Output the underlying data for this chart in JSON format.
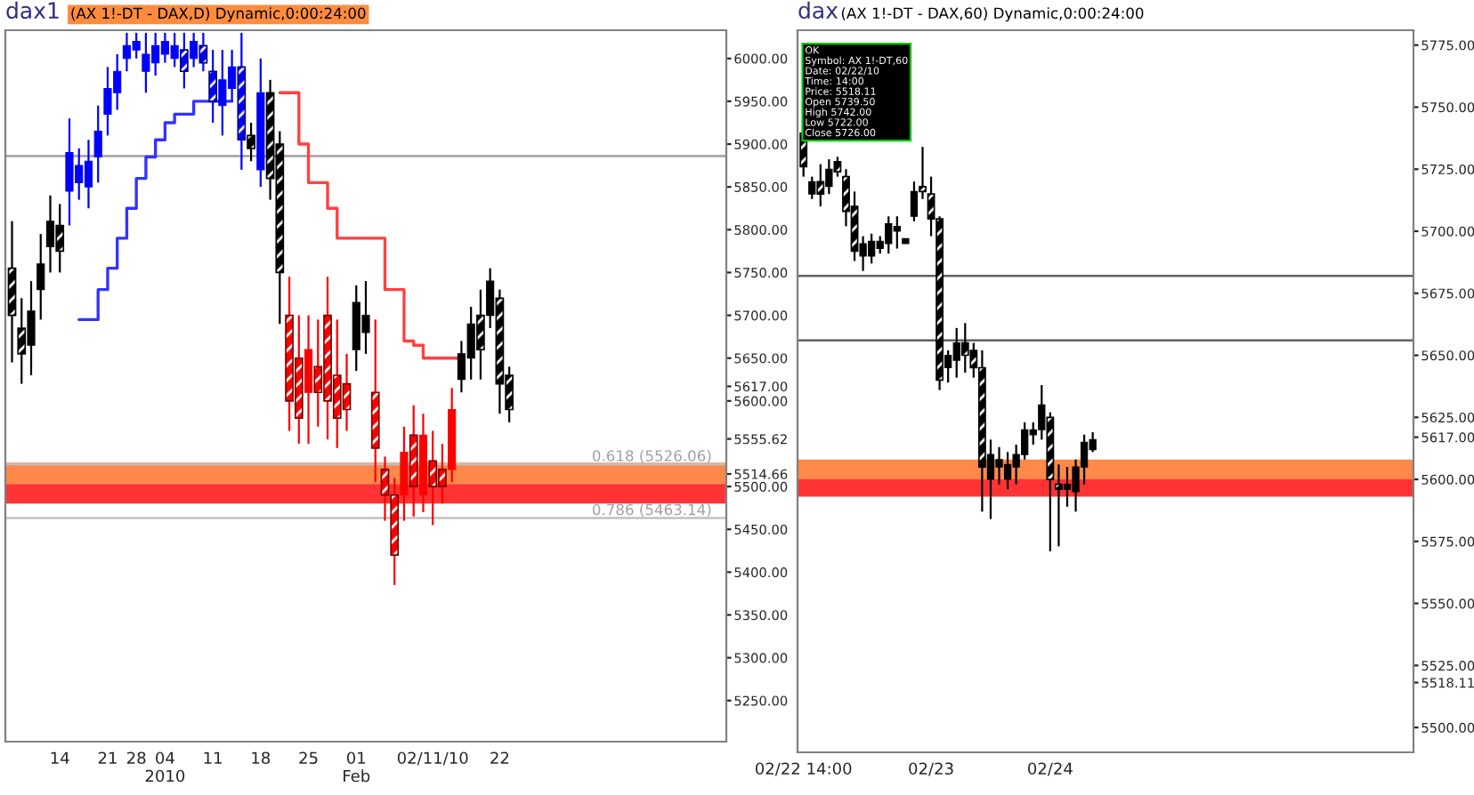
{
  "chart_data": [
    {
      "type": "candlestick",
      "title": "dax1",
      "subtitle": "(AX 1!-DT - DAX,D) Dynamic,0:00:24:00",
      "categories": [
        null,
        null,
        null,
        null,
        null,
        "14",
        null,
        null,
        null,
        null,
        "21",
        null,
        null,
        "28",
        null,
        null,
        "04\n2010",
        null,
        null,
        null,
        null,
        "11",
        null,
        null,
        null,
        null,
        "18",
        null,
        null,
        null,
        null,
        "25",
        null,
        null,
        null,
        null,
        "01\nFeb",
        null,
        null,
        null,
        null,
        null,
        null,
        null,
        "02/11/10",
        null,
        null,
        null,
        null,
        null,
        null,
        "22",
        null,
        null,
        null,
        null,
        null,
        null,
        null,
        null,
        null,
        null,
        null,
        null,
        null,
        null,
        null,
        null,
        null,
        null,
        null,
        null,
        null,
        null,
        null
      ],
      "ohlc": [
        [
          5755,
          5810,
          5645,
          5700
        ],
        [
          5685,
          5720,
          5620,
          5655
        ],
        [
          5665,
          5740,
          5630,
          5705
        ],
        [
          5730,
          5795,
          5695,
          5760
        ],
        [
          5780,
          5840,
          5750,
          5810
        ],
        [
          5805,
          5830,
          5750,
          5775
        ],
        [
          5845,
          5930,
          5805,
          5890
        ],
        [
          5855,
          5895,
          5835,
          5875
        ],
        [
          5850,
          5905,
          5825,
          5880
        ],
        [
          5885,
          5945,
          5855,
          5915
        ],
        [
          5935,
          5990,
          5910,
          5965
        ],
        [
          5960,
          6005,
          5940,
          5985
        ],
        [
          6000,
          6030,
          5985,
          6015
        ],
        [
          6010,
          6030,
          6000,
          6020
        ],
        [
          5985,
          6030,
          5960,
          6005
        ],
        [
          5995,
          6030,
          5980,
          6015
        ],
        [
          6005,
          6030,
          5995,
          6020
        ],
        [
          6000,
          6030,
          5990,
          6015
        ],
        [
          6010,
          6030,
          5965,
          5985
        ],
        [
          6000,
          6030,
          5990,
          6020
        ],
        [
          6015,
          6030,
          5985,
          5995
        ],
        [
          5985,
          6010,
          5925,
          5950
        ],
        [
          5945,
          6010,
          5910,
          5975
        ],
        [
          5965,
          6010,
          5950,
          5990
        ],
        [
          5990,
          6030,
          5870,
          5905
        ],
        [
          5910,
          5925,
          5880,
          5895
        ],
        [
          5870,
          6000,
          5850,
          5960
        ],
        [
          5960,
          5975,
          5835,
          5860
        ],
        [
          5900,
          5915,
          5690,
          5750
        ],
        [
          5700,
          5745,
          5565,
          5600
        ],
        [
          5650,
          5700,
          5550,
          5580
        ],
        [
          5610,
          5700,
          5550,
          5660
        ],
        [
          5640,
          5695,
          5570,
          5610
        ],
        [
          5700,
          5745,
          5555,
          5600
        ],
        [
          5630,
          5695,
          5545,
          5580
        ],
        [
          5620,
          5655,
          5565,
          5590
        ],
        [
          5660,
          5735,
          5635,
          5715
        ],
        [
          5680,
          5740,
          5655,
          5700
        ],
        [
          5610,
          5695,
          5505,
          5545
        ],
        [
          5520,
          5535,
          5460,
          5490
        ],
        [
          5490,
          5510,
          5385,
          5420
        ],
        [
          5490,
          5570,
          5460,
          5540
        ],
        [
          5560,
          5595,
          5465,
          5500
        ],
        [
          5490,
          5585,
          5470,
          5560
        ],
        [
          5530,
          5565,
          5455,
          5500
        ],
        [
          5520,
          5550,
          5480,
          5500
        ],
        [
          5520,
          5615,
          5505,
          5590
        ],
        [
          5625,
          5670,
          5610,
          5655
        ],
        [
          5650,
          5710,
          5625,
          5690
        ],
        [
          5700,
          5730,
          5625,
          5660
        ],
        [
          5700,
          5755,
          5685,
          5740
        ],
        [
          5720,
          5730,
          5585,
          5620
        ],
        [
          5630,
          5640,
          5575,
          5590
        ],
        null,
        null,
        null,
        null,
        null,
        null,
        null,
        null,
        null,
        null,
        null,
        null,
        null,
        null,
        null,
        null,
        null,
        null,
        null,
        null,
        null,
        null
      ],
      "colors": [
        "#000000",
        "#000000",
        "#000000",
        "#000000",
        "#000000",
        "#000000",
        "#0000ff",
        "#0000ff",
        "#0000ff",
        "#0000ff",
        "#0000ff",
        "#0000ff",
        "#0000ff",
        "#0000ff",
        "#0000ff",
        "#0000ff",
        "#0000ff",
        "#0000ff",
        "#0000ff",
        "#0000ff",
        "#0000ff",
        "#0000ff",
        "#0000ff",
        "#0000ff",
        "#0000ff",
        "#000000",
        "#0000ff",
        "#000000",
        "#000000",
        "#ff0000",
        "#ff0000",
        "#ff0000",
        "#ff0000",
        "#ff0000",
        "#ff0000",
        "#ff0000",
        "#000000",
        "#000000",
        "#ff0000",
        "#ff0000",
        "#ff0000",
        "#ff0000",
        "#ff0000",
        "#ff0000",
        "#ff0000",
        "#ff0000",
        "#ff0000",
        "#000000",
        "#000000",
        "#000000",
        "#000000",
        "#000000",
        "#000000",
        null,
        null,
        null,
        null,
        null,
        null,
        null,
        null,
        null,
        null,
        null,
        null,
        null,
        null,
        null,
        null,
        null,
        null,
        null,
        null,
        null,
        null
      ],
      "series": [
        {
          "type": "step",
          "color": "#3333ff",
          "values": [
            null,
            null,
            null,
            null,
            null,
            null,
            null,
            5695,
            5695,
            5730,
            5755,
            5790,
            5825,
            5860,
            5885,
            5905,
            5925,
            5935,
            5935,
            5950,
            5950,
            5950,
            5950,
            5950,
            null,
            null,
            null,
            null,
            null,
            null,
            null,
            null,
            null,
            null,
            null,
            null,
            null,
            null,
            null,
            null,
            null,
            null,
            null,
            null,
            null,
            null,
            null,
            null,
            null,
            null,
            null,
            null,
            null,
            null,
            null,
            null,
            null,
            null,
            null,
            null,
            null,
            null,
            null,
            null,
            null,
            null,
            null,
            null,
            null,
            null,
            null,
            null,
            null,
            null,
            null
          ]
        },
        {
          "type": "step",
          "color": "#ff4040",
          "values": [
            null,
            null,
            null,
            null,
            null,
            null,
            null,
            null,
            null,
            null,
            null,
            null,
            null,
            null,
            null,
            null,
            null,
            null,
            null,
            null,
            null,
            null,
            null,
            null,
            null,
            null,
            null,
            null,
            5960,
            5960,
            5900,
            5855,
            5855,
            5825,
            5790,
            5790,
            5790,
            5790,
            5790,
            5730,
            5730,
            5670,
            5665,
            5650,
            5650,
            5650,
            5650,
            5650,
            null,
            null,
            null,
            null,
            null,
            null,
            null,
            null,
            null,
            null,
            null,
            null,
            null,
            null,
            null,
            null,
            null,
            null,
            null,
            null,
            null,
            null,
            null,
            null,
            null,
            null,
            null
          ]
        }
      ],
      "ylim": [
        5202,
        6033
      ],
      "yticks": [
        {
          "value": 5250,
          "label": "5250.00"
        },
        {
          "value": 5300,
          "label": "5300.00"
        },
        {
          "value": 5350,
          "label": "5350.00"
        },
        {
          "value": 5400,
          "label": "5400.00"
        },
        {
          "value": 5450,
          "label": "5450.00"
        },
        {
          "value": 5500,
          "label": "5500.00"
        },
        {
          "value": 5514.66,
          "label": "5514.66"
        },
        {
          "value": 5555.62,
          "label": "5555.62"
        },
        {
          "value": 5600,
          "label": "5600.00"
        },
        {
          "value": 5617,
          "label": "5617.00"
        },
        {
          "value": 5650,
          "label": "5650.00"
        },
        {
          "value": 5700,
          "label": "5700.00"
        },
        {
          "value": 5750,
          "label": "5750.00"
        },
        {
          "value": 5800,
          "label": "5800.00"
        },
        {
          "value": 5850,
          "label": "5850.00"
        },
        {
          "value": 5900,
          "label": "5900.00"
        },
        {
          "value": 5950,
          "label": "5950.00"
        },
        {
          "value": 6000,
          "label": "6000.00"
        }
      ],
      "ref_lines": [
        {
          "axis": "y",
          "value": 5886,
          "color": "#a0a0a0"
        },
        {
          "axis": "y",
          "value": 5526.06,
          "label": "0.618 (5526.06)",
          "color": "#c0c0c0"
        },
        {
          "axis": "y",
          "value": 5463.14,
          "label": "0.786 (5463.14)",
          "color": "#c0c0c0"
        }
      ],
      "bands": [
        {
          "axis": "y",
          "from": 5503,
          "to": 5528,
          "color": "#ff6a1e"
        },
        {
          "axis": "y",
          "from": 5480,
          "to": 5503,
          "color": "#ff0000"
        }
      ]
    },
    {
      "type": "candlestick",
      "title": "dax",
      "subtitle": "(AX 1!-DT - DAX,60) Dynamic,0:00:24:00",
      "categories": [
        "02/22 14:00",
        null,
        null,
        null,
        null,
        null,
        null,
        null,
        null,
        null,
        null,
        null,
        null,
        null,
        null,
        "02/23",
        null,
        null,
        null,
        null,
        null,
        null,
        null,
        null,
        null,
        null,
        null,
        null,
        null,
        "02/24",
        null,
        null,
        null,
        null,
        null,
        null,
        null,
        null,
        null,
        null,
        null,
        null,
        null,
        null,
        null,
        null,
        null,
        null,
        null,
        null,
        null,
        null,
        null,
        null,
        null,
        null,
        null,
        null,
        null,
        null,
        null,
        null,
        null,
        null,
        null,
        null,
        null,
        null,
        null,
        null,
        null,
        null
      ],
      "ohlc": [
        [
          5739.5,
          5742,
          5722,
          5726
        ],
        [
          5715,
          5722,
          5713,
          5720
        ],
        [
          5720,
          5727,
          5710,
          5715
        ],
        [
          5718,
          5729,
          5715,
          5725
        ],
        [
          5728,
          5730,
          5722,
          5724
        ],
        [
          5722,
          5725,
          5702,
          5708
        ],
        [
          5710,
          5716,
          5688,
          5692
        ],
        [
          5690,
          5698,
          5684,
          5695
        ],
        [
          5690,
          5699,
          5687,
          5696
        ],
        [
          5693,
          5698,
          5691,
          5696
        ],
        [
          5695,
          5706,
          5691,
          5703
        ],
        [
          5700,
          5706,
          5693,
          5702
        ],
        [
          5695,
          5697,
          5695,
          5697
        ],
        [
          5706,
          5720,
          5704,
          5716
        ],
        [
          5718,
          5734,
          5713,
          5716
        ],
        [
          5715,
          5722,
          5698,
          5705
        ],
        [
          5705,
          5706,
          5636,
          5640
        ],
        [
          5645,
          5652,
          5639,
          5650
        ],
        [
          5648,
          5661,
          5641,
          5655
        ],
        [
          5655,
          5663,
          5643,
          5650
        ],
        [
          5652,
          5655,
          5641,
          5645
        ],
        [
          5645,
          5652,
          5587,
          5605
        ],
        [
          5600,
          5616,
          5584,
          5610
        ],
        [
          5605,
          5613,
          5598,
          5608
        ],
        [
          5600,
          5611,
          5596,
          5606
        ],
        [
          5605,
          5614,
          5598,
          5610
        ],
        [
          5610,
          5623,
          5608,
          5620
        ],
        [
          5618,
          5623,
          5614,
          5620
        ],
        [
          5620,
          5638,
          5616,
          5630
        ],
        [
          5625,
          5627,
          5571,
          5600
        ],
        [
          5598,
          5606,
          5573,
          5596
        ],
        [
          5596,
          5605,
          5589,
          5598
        ],
        [
          5595,
          5608,
          5587,
          5605
        ],
        [
          5605,
          5618,
          5598,
          5615
        ],
        [
          5612,
          5619,
          5611,
          5616
        ],
        null,
        null,
        null,
        null,
        null,
        null,
        null,
        null,
        null,
        null,
        null,
        null,
        null,
        null,
        null,
        null,
        null,
        null,
        null,
        null,
        null,
        null,
        null,
        null,
        null,
        null,
        null,
        null,
        null,
        null,
        null,
        null,
        null,
        null,
        null,
        null,
        null
      ],
      "colors": [
        "#000000",
        "#000000",
        "#000000",
        "#000000",
        "#000000",
        "#000000",
        "#000000",
        "#000000",
        "#000000",
        "#000000",
        "#000000",
        "#000000",
        "#000000",
        "#000000",
        "#000000",
        "#000000",
        "#000000",
        "#000000",
        "#000000",
        "#000000",
        "#000000",
        "#000000",
        "#000000",
        "#000000",
        "#000000",
        "#000000",
        "#000000",
        "#000000",
        "#000000",
        "#000000",
        "#000000",
        "#000000",
        "#000000",
        "#000000",
        "#000000",
        null,
        null,
        null,
        null,
        null,
        null,
        null,
        null,
        null,
        null,
        null,
        null,
        null,
        null,
        null,
        null,
        null,
        null,
        null,
        null,
        null,
        null,
        null,
        null,
        null,
        null,
        null,
        null,
        null,
        null,
        null,
        null,
        null,
        null,
        null,
        null,
        null
      ],
      "ylim": [
        5490,
        5781
      ],
      "yticks": [
        {
          "value": 5500,
          "label": "5500.00"
        },
        {
          "value": 5518.11,
          "label": "5518.11"
        },
        {
          "value": 5525,
          "label": "5525.00"
        },
        {
          "value": 5550,
          "label": "5550.00"
        },
        {
          "value": 5575,
          "label": "5575.00"
        },
        {
          "value": 5600,
          "label": "5600.00"
        },
        {
          "value": 5617,
          "label": "5617.00"
        },
        {
          "value": 5625,
          "label": "5625.00"
        },
        {
          "value": 5650,
          "label": "5650.00"
        },
        {
          "value": 5675,
          "label": "5675.00"
        },
        {
          "value": 5700,
          "label": "5700.00"
        },
        {
          "value": 5725,
          "label": "5725.00"
        },
        {
          "value": 5750,
          "label": "5750.00"
        },
        {
          "value": 5775,
          "label": "5775.00"
        }
      ],
      "ref_lines": [
        {
          "axis": "y",
          "value": 5682,
          "color": "#606060"
        },
        {
          "axis": "y",
          "value": 5656,
          "color": "#606060"
        }
      ],
      "bands": [
        {
          "axis": "y",
          "from": 5600,
          "to": 5608,
          "color": "#ff6a1e"
        },
        {
          "axis": "y",
          "from": 5593,
          "to": 5600,
          "color": "#ff0000"
        }
      ],
      "annotations": [
        "OK",
        "Symbol: AX 1!-DT,60",
        "Date: 02/22/10",
        "Time: 14:00",
        "Price: 5518.11",
        "Open 5739.50",
        "High 5742.00",
        "Low 5722.00",
        "Close 5726.00"
      ]
    }
  ]
}
